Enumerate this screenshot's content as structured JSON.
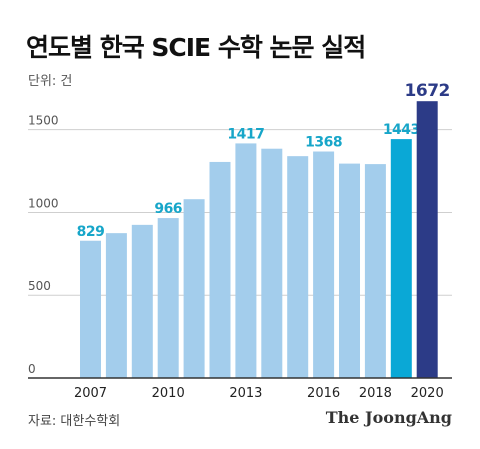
{
  "title": "연도별 한국 SCIE 수학 논문 실적",
  "unit": "단위: 건",
  "source": "자료: 대한수학회",
  "brand": "The JoongAng",
  "colors": {
    "bar": "#a3cdec",
    "bar_2019": "#0aa8d6",
    "bar_2020": "#2c3b87",
    "label_cyan": "#17a6c9",
    "label_navy": "#2c3b87",
    "grid": "#cfcfcf",
    "axis": "#333333"
  },
  "chart_data": {
    "type": "bar",
    "title": "연도별 한국 SCIE 수학 논문 실적",
    "ylabel": "단위: 건",
    "categories": [
      "2007",
      "2008",
      "2009",
      "2010",
      "2011",
      "2012",
      "2013",
      "2014",
      "2015",
      "2016",
      "2017",
      "2018",
      "2019",
      "2020"
    ],
    "values": [
      829,
      875,
      925,
      966,
      1080,
      1305,
      1417,
      1385,
      1340,
      1368,
      1295,
      1292,
      1443,
      1672
    ],
    "labeled": {
      "2007": "829",
      "2010": "966",
      "2013": "1417",
      "2016": "1368",
      "2019": "1443",
      "2020": "1672"
    },
    "xticks": [
      "2007",
      "2010",
      "2013",
      "2016",
      "2018",
      "2020"
    ],
    "yticks": [
      "0",
      "500",
      "1000",
      "1500"
    ],
    "ylim": [
      0,
      1800
    ],
    "grid": true,
    "legend": "none"
  }
}
